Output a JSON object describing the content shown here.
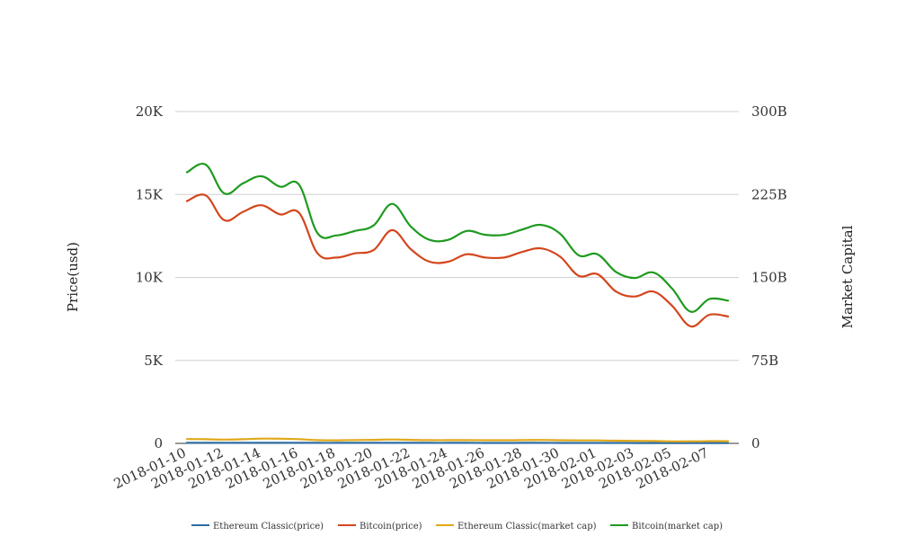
{
  "chart_data": {
    "type": "line",
    "x": [
      "2018-01-10",
      "2018-01-11",
      "2018-01-12",
      "2018-01-13",
      "2018-01-14",
      "2018-01-15",
      "2018-01-16",
      "2018-01-17",
      "2018-01-18",
      "2018-01-19",
      "2018-01-20",
      "2018-01-21",
      "2018-01-22",
      "2018-01-23",
      "2018-01-24",
      "2018-01-25",
      "2018-01-26",
      "2018-01-27",
      "2018-01-28",
      "2018-01-29",
      "2018-01-30",
      "2018-01-31",
      "2018-02-01",
      "2018-02-02",
      "2018-02-03",
      "2018-02-04",
      "2018-02-05",
      "2018-02-06",
      "2018-02-07",
      "2018-02-08"
    ],
    "x_tick_labels": [
      "2018-01-10",
      "2018-01-12",
      "2018-01-14",
      "2018-01-16",
      "2018-01-18",
      "2018-01-20",
      "2018-01-22",
      "2018-01-24",
      "2018-01-26",
      "2018-01-28",
      "2018-01-30",
      "2018-02-01",
      "2018-02-03",
      "2018-02-05",
      "2018-02-07"
    ],
    "ylabel_left": "Price(usd)",
    "ylabel_right": "Market Capital",
    "ylim_left": [
      0,
      20000
    ],
    "ylim_right": [
      0,
      300000000000
    ],
    "yticks_left": [
      "0",
      "5K",
      "10K",
      "15K",
      "20K"
    ],
    "yticks_right": [
      "0",
      "75B",
      "150B",
      "225B",
      "300B"
    ],
    "grid": true,
    "legend_position": "bottom",
    "series": [
      {
        "name": "Ethereum Classic(price)",
        "axis": "left",
        "color": "#2e6da4",
        "values": [
          38,
          36,
          33,
          35,
          38,
          36,
          34,
          30,
          30,
          31,
          32,
          34,
          32,
          30,
          30,
          30,
          29,
          29,
          30,
          31,
          29,
          27,
          27,
          25,
          24,
          22,
          19,
          20,
          21,
          20
        ]
      },
      {
        "name": "Bitcoin(price)",
        "axis": "left",
        "color": "#d4461d",
        "values": [
          14600,
          14950,
          13450,
          13950,
          14350,
          13800,
          13900,
          11450,
          11200,
          11450,
          11650,
          12850,
          11700,
          10950,
          10950,
          11400,
          11200,
          11200,
          11550,
          11750,
          11250,
          10100,
          10200,
          9150,
          8850,
          9150,
          8300,
          7050,
          7750,
          7650
        ]
      },
      {
        "name": "Ethereum Classic(market cap)",
        "axis": "right",
        "color": "#e0a81a",
        "values": [
          3900000000,
          3700000000,
          3400000000,
          3700000000,
          4300000000,
          4200000000,
          3800000000,
          2900000000,
          2800000000,
          3000000000,
          3200000000,
          3500000000,
          3200000000,
          2900000000,
          2900000000,
          2950000000,
          2850000000,
          2850000000,
          3000000000,
          3100000000,
          2850000000,
          2700000000,
          2650000000,
          2400000000,
          2300000000,
          2150000000,
          1800000000,
          1850000000,
          2000000000,
          1950000000
        ]
      },
      {
        "name": "Bitcoin(market cap)",
        "axis": "right",
        "color": "#1f9a1f",
        "values": [
          245000000000,
          252000000000,
          226000000000,
          235000000000,
          241500000000,
          232000000000,
          234000000000,
          190000000000,
          188000000000,
          192000000000,
          197000000000,
          216500000000,
          196000000000,
          184000000000,
          184000000000,
          192000000000,
          188500000000,
          188500000000,
          193500000000,
          197500000000,
          189500000000,
          170000000000,
          171000000000,
          155000000000,
          149500000000,
          154500000000,
          140000000000,
          119000000000,
          130500000000,
          129000000000
        ]
      }
    ]
  }
}
